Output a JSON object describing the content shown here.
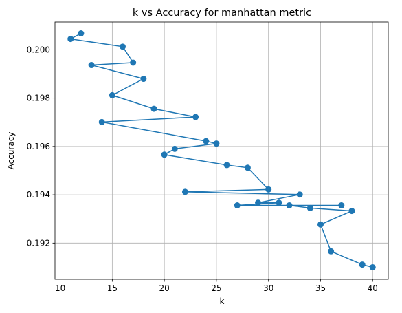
{
  "chart_data": {
    "type": "line",
    "title": "k vs Accuracy for manhattan metric",
    "xlabel": "k",
    "ylabel": "Accuracy",
    "xlim": [
      9.5,
      41.5
    ],
    "ylim": [
      0.1905,
      0.20115
    ],
    "xticks": [
      10,
      15,
      20,
      25,
      30,
      35,
      40
    ],
    "yticks": [
      0.192,
      0.194,
      0.196,
      0.198,
      0.2
    ],
    "ytick_labels": [
      "0.192",
      "0.194",
      "0.196",
      "0.198",
      "0.200"
    ],
    "grid": true,
    "marker": "circle",
    "color": "#1f77b4",
    "series": [
      {
        "x": [
          12,
          11,
          16,
          17,
          13,
          18,
          15,
          19,
          23,
          14,
          24,
          25,
          21,
          20,
          26,
          28,
          30,
          22,
          33,
          29,
          31,
          27,
          37,
          32,
          34,
          38,
          35,
          36,
          39,
          40
        ],
        "y": [
          0.20068,
          0.20045,
          0.20013,
          0.19947,
          0.19937,
          0.1988,
          0.19812,
          0.19756,
          0.19722,
          0.19701,
          0.19622,
          0.19612,
          0.1959,
          0.19566,
          0.19523,
          0.19512,
          0.19422,
          0.19412,
          0.19401,
          0.19367,
          0.19367,
          0.19356,
          0.19356,
          0.19356,
          0.19345,
          0.19333,
          0.19277,
          0.19166,
          0.19111,
          0.191
        ]
      }
    ]
  }
}
